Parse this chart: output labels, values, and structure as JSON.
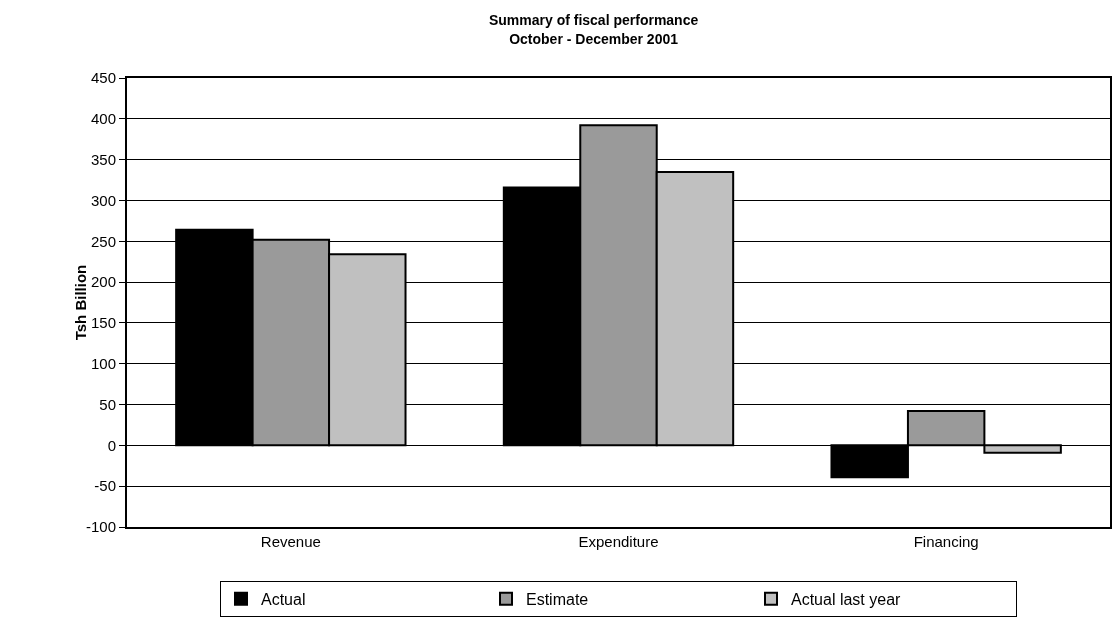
{
  "chart_data": {
    "type": "bar",
    "title": "Summary of fiscal performance\nOctober - December 2001",
    "ylabel": "Tsh Billion",
    "categories": [
      "Revenue",
      "Expenditure",
      "Financing"
    ],
    "series": [
      {
        "name": "Actual",
        "color": "#000000",
        "values": [
          264,
          316,
          -39
        ]
      },
      {
        "name": "Estimate",
        "color": "#9a9a9a",
        "values": [
          252,
          392,
          42
        ]
      },
      {
        "name": "Actual last year",
        "color": "#c0c0c0",
        "values": [
          234,
          335,
          -9
        ]
      }
    ],
    "ylim": [
      -100,
      450
    ],
    "yticks": [
      -100,
      -50,
      0,
      50,
      100,
      150,
      200,
      250,
      300,
      350,
      400,
      450
    ],
    "grid": "y",
    "legend": "bottom"
  }
}
